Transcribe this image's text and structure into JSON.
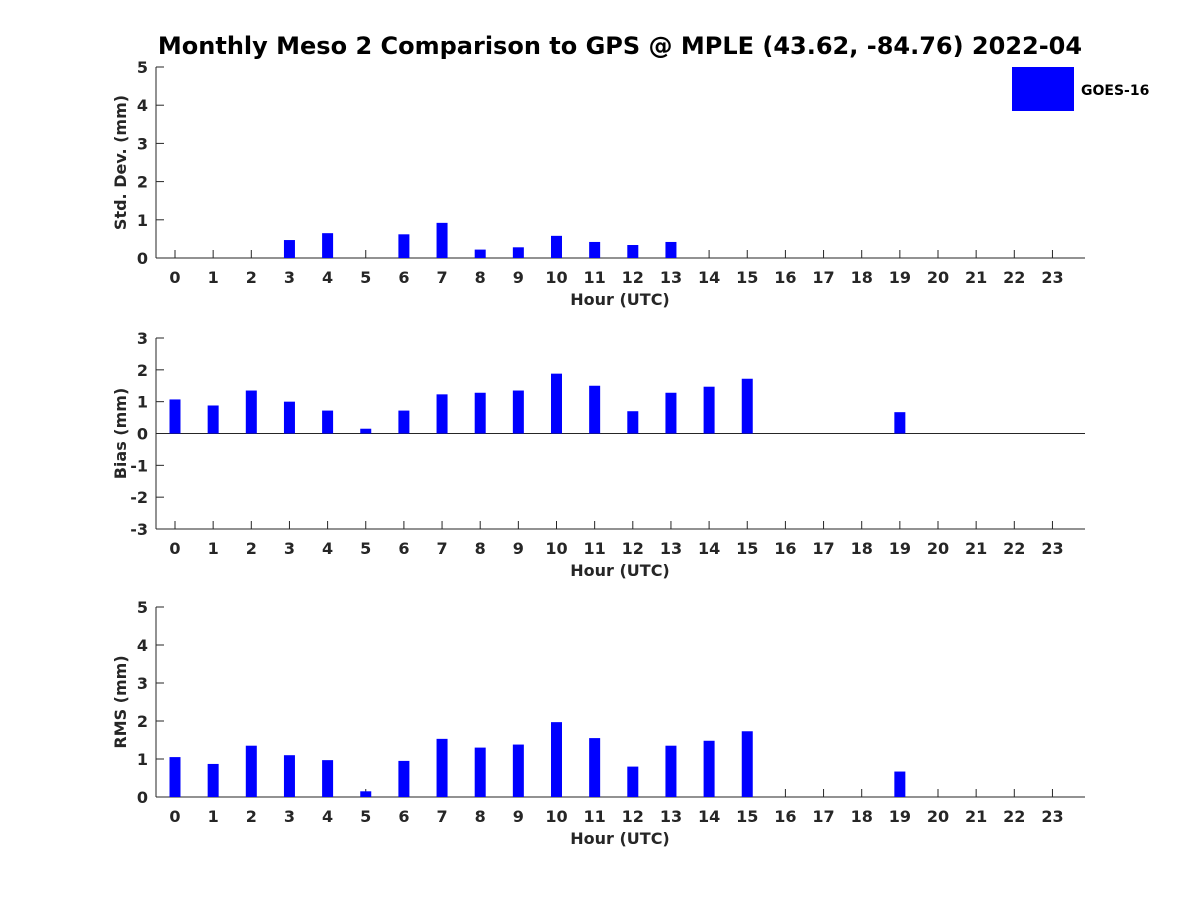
{
  "title": "Monthly Meso 2 Comparison to GPS @ MPLE (43.62, -84.76) 2022-04",
  "legend": {
    "label": "GOES-16",
    "color": "#0000ff"
  },
  "chart_data": [
    {
      "type": "bar",
      "xlabel": "Hour (UTC)",
      "ylabel": "Std. Dev. (mm)",
      "ylim": [
        0,
        5
      ],
      "yticks": [
        "0",
        "1",
        "2",
        "3",
        "4",
        "5"
      ],
      "categories": [
        "0",
        "1",
        "2",
        "3",
        "4",
        "5",
        "6",
        "7",
        "8",
        "9",
        "10",
        "11",
        "12",
        "13",
        "14",
        "15",
        "16",
        "17",
        "18",
        "19",
        "20",
        "21",
        "22",
        "23"
      ],
      "series": [
        {
          "name": "GOES-16",
          "values": [
            null,
            null,
            null,
            0.47,
            0.65,
            null,
            0.62,
            0.92,
            0.22,
            0.28,
            0.58,
            0.42,
            0.34,
            0.42,
            null,
            null,
            null,
            null,
            null,
            null,
            null,
            null,
            null,
            null
          ]
        }
      ]
    },
    {
      "type": "bar",
      "xlabel": "Hour (UTC)",
      "ylabel": "Bias (mm)",
      "ylim": [
        -3,
        3
      ],
      "yticks": [
        "-3",
        "-2",
        "-1",
        "0",
        "1",
        "2",
        "3"
      ],
      "categories": [
        "0",
        "1",
        "2",
        "3",
        "4",
        "5",
        "6",
        "7",
        "8",
        "9",
        "10",
        "11",
        "12",
        "13",
        "14",
        "15",
        "16",
        "17",
        "18",
        "19",
        "20",
        "21",
        "22",
        "23"
      ],
      "series": [
        {
          "name": "GOES-16",
          "values": [
            1.07,
            0.88,
            1.35,
            1.0,
            0.72,
            0.15,
            0.72,
            1.23,
            1.28,
            1.35,
            1.88,
            1.5,
            0.7,
            1.28,
            1.47,
            1.72,
            null,
            null,
            null,
            0.67,
            null,
            null,
            null,
            null
          ]
        }
      ]
    },
    {
      "type": "bar",
      "xlabel": "Hour (UTC)",
      "ylabel": "RMS (mm)",
      "ylim": [
        0,
        5
      ],
      "yticks": [
        "0",
        "1",
        "2",
        "3",
        "4",
        "5"
      ],
      "categories": [
        "0",
        "1",
        "2",
        "3",
        "4",
        "5",
        "6",
        "7",
        "8",
        "9",
        "10",
        "11",
        "12",
        "13",
        "14",
        "15",
        "16",
        "17",
        "18",
        "19",
        "20",
        "21",
        "22",
        "23"
      ],
      "series": [
        {
          "name": "GOES-16",
          "values": [
            1.05,
            0.87,
            1.35,
            1.1,
            0.97,
            0.15,
            0.95,
            1.53,
            1.3,
            1.38,
            1.97,
            1.55,
            0.8,
            1.35,
            1.48,
            1.73,
            null,
            null,
            null,
            0.67,
            null,
            null,
            null,
            null
          ]
        }
      ]
    }
  ]
}
